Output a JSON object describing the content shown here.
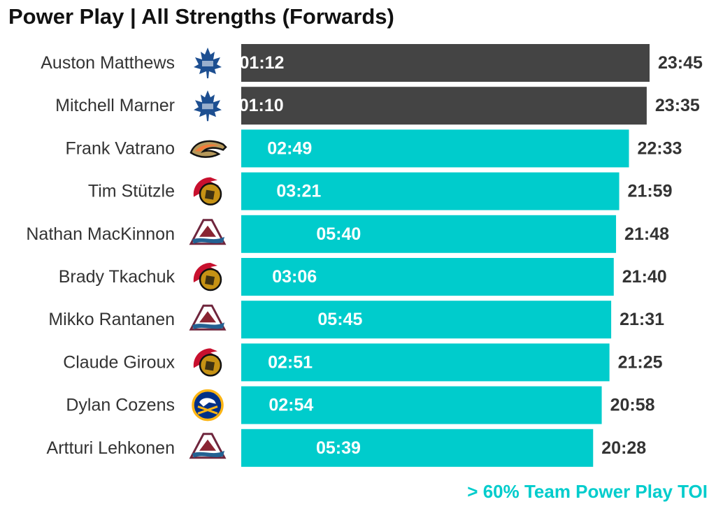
{
  "title": "Power Play | All Strengths (Forwards)",
  "footnote": "> 60% Team Power Play TOI",
  "colors": {
    "highlight": "#00cccc",
    "default": "#444444",
    "label_text": "#333333",
    "bar_text": "#ffffff"
  },
  "chart_data": {
    "type": "bar",
    "orientation": "horizontal",
    "xlabel": "",
    "ylabel": "",
    "grid": false,
    "legend": "none",
    "categories": [
      "Auston Matthews",
      "Mitchell Marner",
      "Frank Vatrano",
      "Tim Stützle",
      "Nathan MacKinnon",
      "Brady Tkachuk",
      "Mikko Rantanen",
      "Claude Giroux",
      "Dylan Cozens",
      "Artturi Lehkonen"
    ],
    "teams": [
      "maple-leafs-logo",
      "maple-leafs-logo",
      "ducks-logo",
      "senators-logo",
      "avalanche-logo",
      "senators-logo",
      "avalanche-logo",
      "senators-logo",
      "sabres-logo",
      "avalanche-logo"
    ],
    "values": [
      23.75,
      23.583,
      22.55,
      21.983,
      21.8,
      21.667,
      21.517,
      21.417,
      20.967,
      20.467
    ],
    "toi_labels": [
      "23:45",
      "23:35",
      "22:33",
      "21:59",
      "21:48",
      "21:40",
      "21:31",
      "21:25",
      "20:58",
      "20:28"
    ],
    "pp_values": [
      1.2,
      1.167,
      2.817,
      3.35,
      5.667,
      3.1,
      5.75,
      2.85,
      2.9,
      5.65
    ],
    "pp_labels": [
      "01:12",
      "01:10",
      "02:49",
      "03:21",
      "05:40",
      "03:06",
      "05:45",
      "02:51",
      "02:54",
      "05:39"
    ],
    "highlighted": [
      false,
      false,
      true,
      true,
      true,
      true,
      true,
      true,
      true,
      true
    ]
  }
}
